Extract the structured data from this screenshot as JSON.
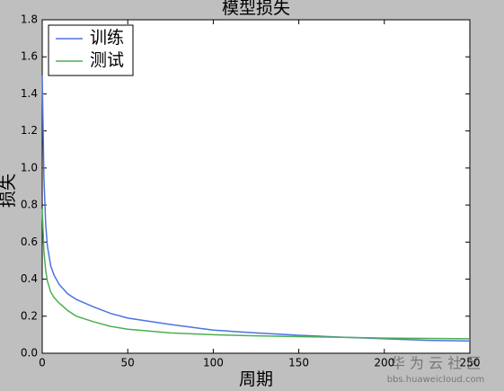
{
  "chart_data": {
    "type": "line",
    "title": "模型损失",
    "x_label": "周期",
    "y_label": "损失",
    "x": [
      0,
      1,
      2,
      3,
      5,
      7,
      10,
      15,
      20,
      30,
      40,
      50,
      75,
      100,
      125,
      150,
      175,
      200,
      225,
      250
    ],
    "series": [
      {
        "name": "训练",
        "color": "#4c72e0",
        "values": [
          1.5,
          0.95,
          0.7,
          0.58,
          0.47,
          0.42,
          0.37,
          0.32,
          0.29,
          0.25,
          0.215,
          0.19,
          0.155,
          0.125,
          0.11,
          0.097,
          0.087,
          0.078,
          0.07,
          0.066
        ]
      },
      {
        "name": "测试",
        "color": "#4caf50",
        "values": [
          0.78,
          0.55,
          0.45,
          0.39,
          0.33,
          0.3,
          0.27,
          0.23,
          0.2,
          0.17,
          0.145,
          0.13,
          0.11,
          0.1,
          0.094,
          0.09,
          0.086,
          0.082,
          0.08,
          0.078
        ]
      }
    ],
    "xlim": [
      0,
      250
    ],
    "xticks": [
      0,
      50,
      100,
      150,
      200,
      250
    ],
    "ylim": [
      0,
      1.8
    ],
    "yticks": [
      {
        "value": 0,
        "label": "0.0"
      },
      0.2,
      0.4,
      0.6,
      0.8,
      {
        "value": 1,
        "label": "1.0"
      },
      1.2,
      1.4,
      1.6,
      1.8
    ],
    "grid": false,
    "legend": "upper left"
  },
  "watermark": {
    "brand": "华 为 云 社 区",
    "url": "bbs.huaweicloud.com"
  }
}
